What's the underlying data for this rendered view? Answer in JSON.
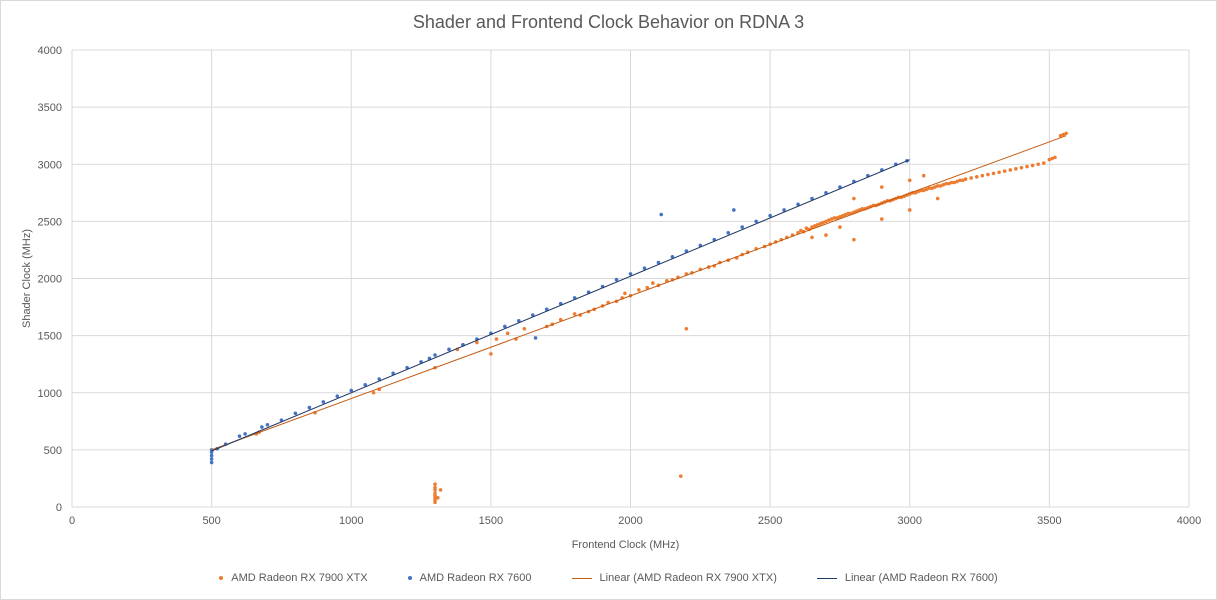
{
  "chart_data": {
    "type": "scatter",
    "title": "Shader and Frontend Clock Behavior on RDNA 3",
    "xlabel": "Frontend Clock (MHz)",
    "ylabel": "Shader Clock (MHz)",
    "xlim": [
      0,
      4000
    ],
    "ylim": [
      0,
      4000
    ],
    "xticks": [
      0,
      500,
      1000,
      1500,
      2000,
      2500,
      3000,
      3500,
      4000
    ],
    "yticks": [
      0,
      500,
      1000,
      1500,
      2000,
      2500,
      3000,
      3500,
      4000
    ],
    "grid": true,
    "legend_position": "bottom",
    "series": [
      {
        "name": "AMD Radeon RX 7900 XTX",
        "color": "#ed7d31",
        "points": [
          [
            660,
            640
          ],
          [
            670,
            655
          ],
          [
            870,
            825
          ],
          [
            1080,
            1000
          ],
          [
            1100,
            1030
          ],
          [
            1300,
            1220
          ],
          [
            1300,
            40
          ],
          [
            1300,
            60
          ],
          [
            1300,
            80
          ],
          [
            1300,
            100
          ],
          [
            1300,
            120
          ],
          [
            1300,
            150
          ],
          [
            1300,
            170
          ],
          [
            1300,
            200
          ],
          [
            1310,
            80
          ],
          [
            1320,
            150
          ],
          [
            1380,
            1380
          ],
          [
            1400,
            1420
          ],
          [
            1450,
            1440
          ],
          [
            1500,
            1340
          ],
          [
            1520,
            1470
          ],
          [
            1560,
            1520
          ],
          [
            1590,
            1470
          ],
          [
            1620,
            1560
          ],
          [
            1700,
            1580
          ],
          [
            1720,
            1600
          ],
          [
            1750,
            1640
          ],
          [
            1800,
            1690
          ],
          [
            1820,
            1680
          ],
          [
            1850,
            1710
          ],
          [
            1870,
            1730
          ],
          [
            1900,
            1760
          ],
          [
            1920,
            1790
          ],
          [
            1950,
            1800
          ],
          [
            1970,
            1830
          ],
          [
            1980,
            1870
          ],
          [
            2000,
            1850
          ],
          [
            2030,
            1900
          ],
          [
            2060,
            1920
          ],
          [
            2080,
            1960
          ],
          [
            2100,
            1940
          ],
          [
            2130,
            1980
          ],
          [
            2150,
            1990
          ],
          [
            2170,
            2010
          ],
          [
            2180,
            270
          ],
          [
            2200,
            1560
          ],
          [
            2200,
            2040
          ],
          [
            2220,
            2050
          ],
          [
            2250,
            2080
          ],
          [
            2280,
            2100
          ],
          [
            2300,
            2110
          ],
          [
            2320,
            2140
          ],
          [
            2350,
            2160
          ],
          [
            2380,
            2180
          ],
          [
            2400,
            2210
          ],
          [
            2420,
            2230
          ],
          [
            2450,
            2260
          ],
          [
            2480,
            2280
          ],
          [
            2500,
            2300
          ],
          [
            2520,
            2320
          ],
          [
            2540,
            2340
          ],
          [
            2560,
            2360
          ],
          [
            2580,
            2380
          ],
          [
            2600,
            2400
          ],
          [
            2610,
            2420
          ],
          [
            2620,
            2410
          ],
          [
            2630,
            2440
          ],
          [
            2640,
            2430
          ],
          [
            2650,
            2450
          ],
          [
            2660,
            2460
          ],
          [
            2670,
            2470
          ],
          [
            2680,
            2480
          ],
          [
            2690,
            2490
          ],
          [
            2700,
            2500
          ],
          [
            2710,
            2510
          ],
          [
            2720,
            2520
          ],
          [
            2730,
            2530
          ],
          [
            2740,
            2530
          ],
          [
            2750,
            2540
          ],
          [
            2760,
            2550
          ],
          [
            2770,
            2560
          ],
          [
            2780,
            2570
          ],
          [
            2790,
            2570
          ],
          [
            2800,
            2580
          ],
          [
            2810,
            2590
          ],
          [
            2820,
            2600
          ],
          [
            2830,
            2610
          ],
          [
            2840,
            2610
          ],
          [
            2850,
            2620
          ],
          [
            2860,
            2630
          ],
          [
            2870,
            2640
          ],
          [
            2880,
            2640
          ],
          [
            2890,
            2650
          ],
          [
            2900,
            2660
          ],
          [
            2910,
            2670
          ],
          [
            2920,
            2680
          ],
          [
            2930,
            2680
          ],
          [
            2940,
            2690
          ],
          [
            2950,
            2700
          ],
          [
            2960,
            2710
          ],
          [
            2970,
            2710
          ],
          [
            2980,
            2720
          ],
          [
            2990,
            2730
          ],
          [
            3000,
            2740
          ],
          [
            3010,
            2750
          ],
          [
            3020,
            2750
          ],
          [
            3030,
            2760
          ],
          [
            3040,
            2770
          ],
          [
            3050,
            2770
          ],
          [
            3060,
            2780
          ],
          [
            3070,
            2790
          ],
          [
            3080,
            2790
          ],
          [
            3090,
            2800
          ],
          [
            3100,
            2810
          ],
          [
            3110,
            2810
          ],
          [
            3120,
            2820
          ],
          [
            3130,
            2830
          ],
          [
            3140,
            2830
          ],
          [
            3150,
            2840
          ],
          [
            3160,
            2840
          ],
          [
            3170,
            2850
          ],
          [
            3180,
            2860
          ],
          [
            3190,
            2860
          ],
          [
            3200,
            2870
          ],
          [
            3220,
            2880
          ],
          [
            3240,
            2890
          ],
          [
            3260,
            2900
          ],
          [
            3280,
            2910
          ],
          [
            3300,
            2920
          ],
          [
            3320,
            2930
          ],
          [
            3340,
            2940
          ],
          [
            3360,
            2950
          ],
          [
            3380,
            2960
          ],
          [
            3400,
            2970
          ],
          [
            3420,
            2980
          ],
          [
            3440,
            2990
          ],
          [
            3460,
            3000
          ],
          [
            3480,
            3010
          ],
          [
            3500,
            3040
          ],
          [
            3510,
            3050
          ],
          [
            3520,
            3060
          ],
          [
            3540,
            3250
          ],
          [
            3550,
            3260
          ],
          [
            3560,
            3270
          ],
          [
            2700,
            2380
          ],
          [
            2800,
            2340
          ],
          [
            2900,
            2520
          ],
          [
            3000,
            2600
          ],
          [
            3100,
            2700
          ],
          [
            2800,
            2700
          ],
          [
            2900,
            2800
          ],
          [
            3000,
            2860
          ],
          [
            3050,
            2900
          ],
          [
            2650,
            2360
          ],
          [
            2750,
            2450
          ]
        ]
      },
      {
        "name": "AMD Radeon RX 7600",
        "color": "#4472c4",
        "points": [
          [
            500,
            390
          ],
          [
            500,
            420
          ],
          [
            500,
            450
          ],
          [
            500,
            480
          ],
          [
            500,
            500
          ],
          [
            520,
            510
          ],
          [
            550,
            550
          ],
          [
            600,
            620
          ],
          [
            620,
            640
          ],
          [
            680,
            700
          ],
          [
            700,
            720
          ],
          [
            750,
            760
          ],
          [
            800,
            820
          ],
          [
            850,
            870
          ],
          [
            900,
            920
          ],
          [
            950,
            970
          ],
          [
            1000,
            1020
          ],
          [
            1050,
            1070
          ],
          [
            1100,
            1120
          ],
          [
            1150,
            1170
          ],
          [
            1200,
            1220
          ],
          [
            1250,
            1270
          ],
          [
            1280,
            1300
          ],
          [
            1300,
            1330
          ],
          [
            1350,
            1380
          ],
          [
            1400,
            1420
          ],
          [
            1450,
            1470
          ],
          [
            1500,
            1520
          ],
          [
            1550,
            1580
          ],
          [
            1600,
            1630
          ],
          [
            1650,
            1680
          ],
          [
            1660,
            1480
          ],
          [
            1700,
            1730
          ],
          [
            1750,
            1780
          ],
          [
            1800,
            1830
          ],
          [
            1850,
            1880
          ],
          [
            1900,
            1930
          ],
          [
            1950,
            1990
          ],
          [
            2000,
            2040
          ],
          [
            2050,
            2090
          ],
          [
            2100,
            2140
          ],
          [
            2110,
            2560
          ],
          [
            2150,
            2190
          ],
          [
            2200,
            2240
          ],
          [
            2250,
            2290
          ],
          [
            2300,
            2340
          ],
          [
            2350,
            2400
          ],
          [
            2370,
            2600
          ],
          [
            2400,
            2450
          ],
          [
            2450,
            2500
          ],
          [
            2500,
            2550
          ],
          [
            2550,
            2600
          ],
          [
            2600,
            2650
          ],
          [
            2650,
            2700
          ],
          [
            2700,
            2750
          ],
          [
            2750,
            2800
          ],
          [
            2800,
            2850
          ],
          [
            2850,
            2900
          ],
          [
            2900,
            2950
          ],
          [
            2950,
            3000
          ],
          [
            2990,
            3030
          ]
        ]
      },
      {
        "name": "Linear (AMD Radeon RX 7900 XTX)",
        "color": "#c55a11",
        "line": [
          [
            500,
            500
          ],
          [
            3560,
            3250
          ]
        ]
      },
      {
        "name": "Linear (AMD Radeon RX 7600)",
        "color": "#203864",
        "line": [
          [
            500,
            490
          ],
          [
            3000,
            3040
          ]
        ]
      }
    ]
  }
}
